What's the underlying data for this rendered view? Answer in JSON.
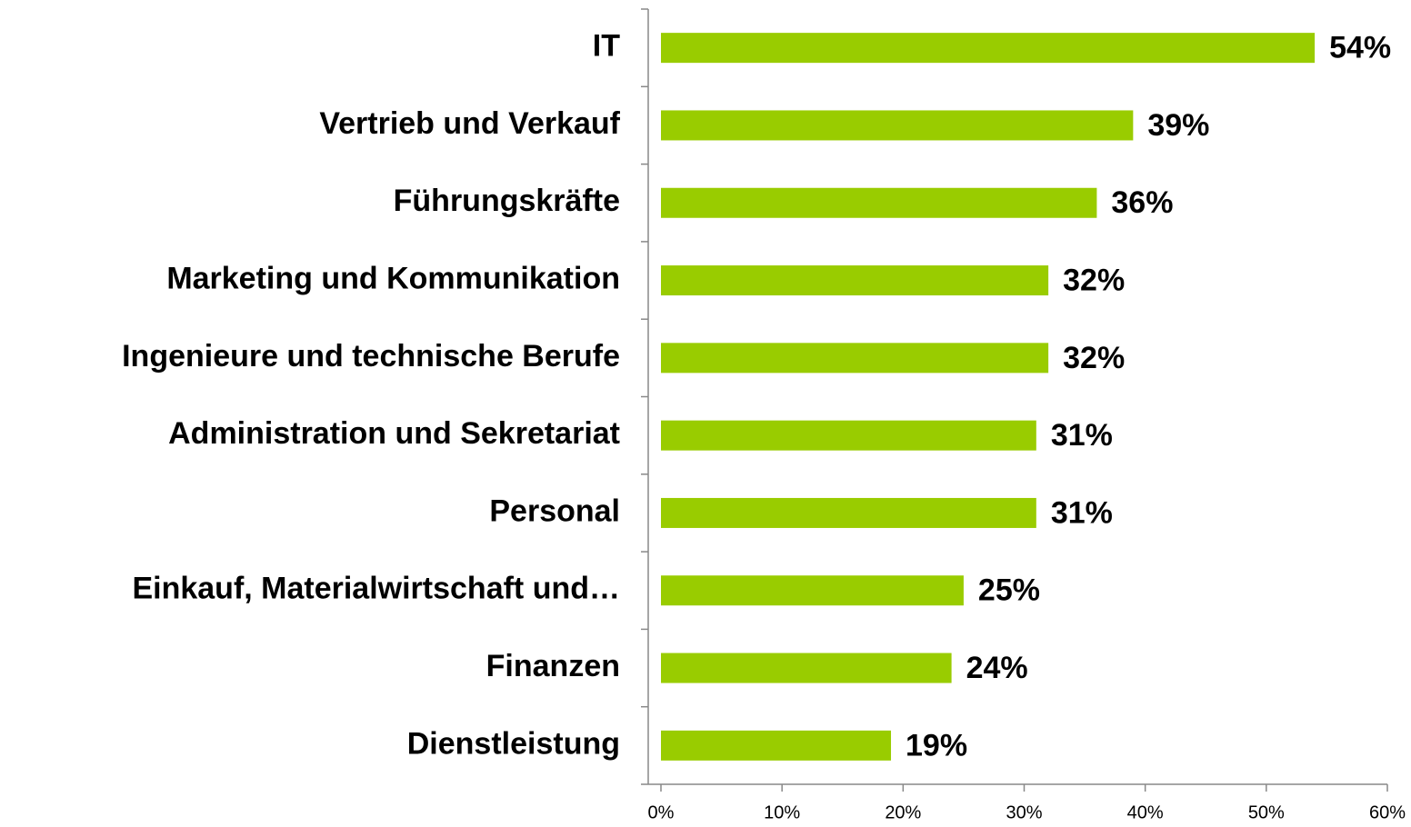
{
  "chart_data": {
    "type": "bar",
    "orientation": "horizontal",
    "categories": [
      "IT",
      "Vertrieb und Verkauf",
      "Führungskräfte",
      "Marketing und Kommunikation",
      "Ingenieure und technische Berufe",
      "Administration und Sekretariat",
      "Personal",
      "Einkauf, Materialwirtschaft und…",
      "Finanzen",
      "Dienstleistung"
    ],
    "values": [
      54,
      39,
      36,
      32,
      32,
      31,
      31,
      25,
      24,
      19
    ],
    "value_labels": [
      "54%",
      "39%",
      "36%",
      "32%",
      "32%",
      "31%",
      "31%",
      "25%",
      "24%",
      "19%"
    ],
    "color": "#99cc00",
    "xlim": [
      0,
      60
    ],
    "xticks": [
      {
        "value": 0,
        "label": "0%"
      },
      {
        "value": 10,
        "label": "10%"
      },
      {
        "value": 20,
        "label": "20%"
      },
      {
        "value": 30,
        "label": "30%"
      },
      {
        "value": 40,
        "label": "40%"
      },
      {
        "value": 50,
        "label": "50%"
      },
      {
        "value": 60,
        "label": "60%"
      }
    ],
    "grid": false
  }
}
